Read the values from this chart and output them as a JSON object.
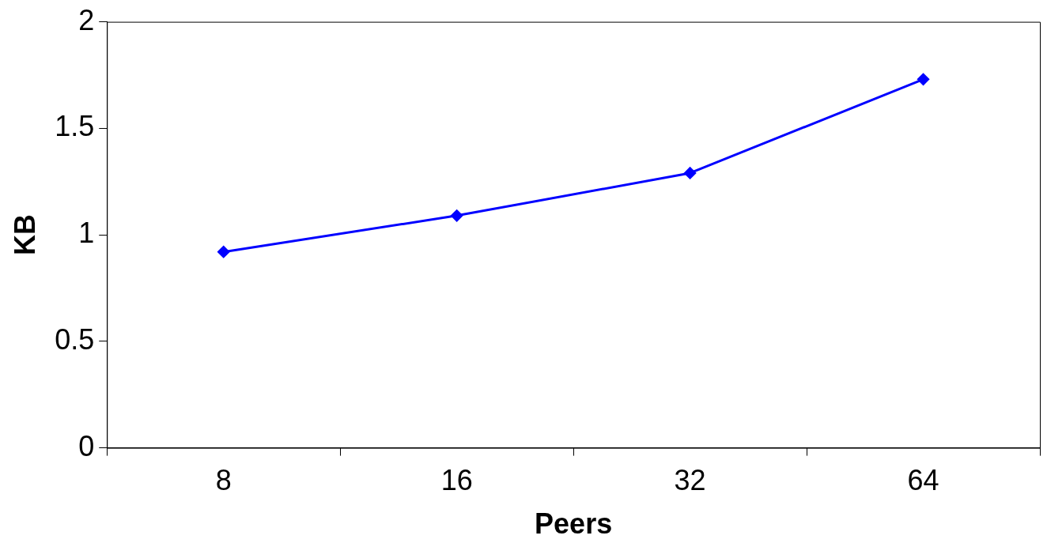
{
  "chart_data": {
    "type": "line",
    "xlabel": "Peers",
    "ylabel": "KB",
    "categories": [
      "8",
      "16",
      "32",
      "64"
    ],
    "series": [
      {
        "color": "#0000ff",
        "values": [
          0.92,
          1.09,
          1.29,
          1.73
        ]
      }
    ],
    "ylim": [
      0,
      2
    ],
    "yticks": [
      0,
      0.5,
      1,
      1.5,
      2
    ],
    "grid": false,
    "legend": false,
    "marker": "diamond",
    "line_style": "solid"
  }
}
